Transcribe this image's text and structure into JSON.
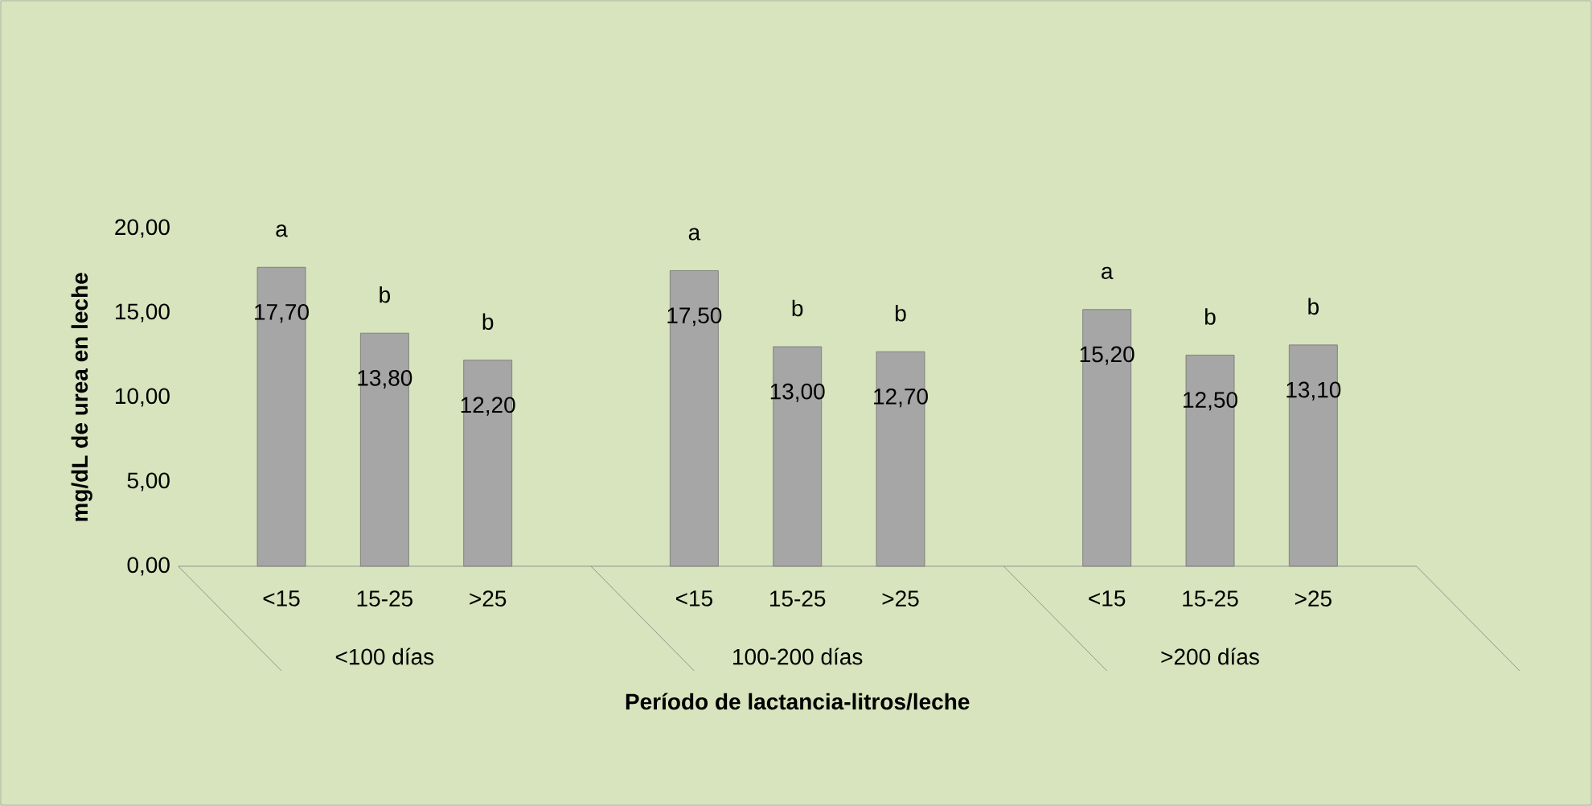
{
  "chart_data": {
    "type": "bar",
    "categories": [
      "<15",
      "15-25",
      ">25",
      "<15",
      "15-25",
      ">25",
      "<15",
      "15-25",
      ">25"
    ],
    "values": [
      17.7,
      13.8,
      12.2,
      17.5,
      13.0,
      12.7,
      15.2,
      12.5,
      13.1
    ],
    "value_labels": [
      "17,70",
      "13,80",
      "12,20",
      "17,50",
      "13,00",
      "12,70",
      "15,20",
      "12,50",
      "13,10"
    ],
    "color": "#a6a6a6",
    "ylim": [
      0,
      20
    ],
    "yticks": [
      {
        "value": 0,
        "label": "0,00"
      },
      {
        "value": 5,
        "label": "5,00"
      },
      {
        "value": 10,
        "label": "10,00"
      },
      {
        "value": 15,
        "label": "15,00"
      },
      {
        "value": 20,
        "label": "20,00"
      }
    ],
    "ylabel": "mg/dL de urea en leche",
    "xlabel": "Período de lactancia-litros/leche",
    "annotations": [
      "a",
      "b",
      "b",
      "a",
      "b",
      "b",
      "a",
      "b",
      "b",
      "<100 días",
      "100-200 días",
      ">200 días"
    ]
  }
}
